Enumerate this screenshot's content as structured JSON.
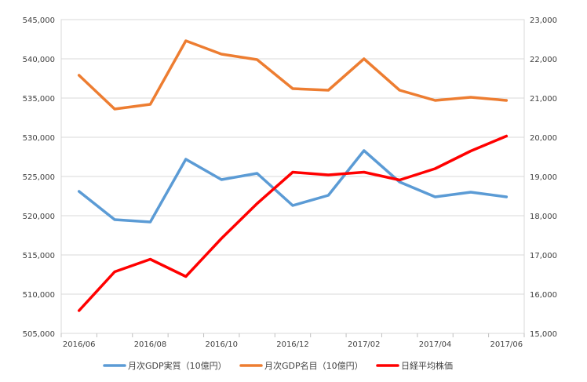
{
  "chart_data": {
    "type": "line",
    "title": "",
    "x": [
      "2016/06",
      "2016/07",
      "2016/08",
      "2016/09",
      "2016/10",
      "2016/11",
      "2016/12",
      "2017/01",
      "2017/02",
      "2017/03",
      "2017/04",
      "2017/05",
      "2017/06"
    ],
    "x_tick_labels": [
      "2016/06",
      "2016/08",
      "2016/10",
      "2016/12",
      "2017/02",
      "2017/04",
      "2017/06"
    ],
    "y_left": {
      "min": 505000,
      "max": 545000,
      "step": 5000,
      "ticks": [
        "505,000",
        "510,000",
        "515,000",
        "520,000",
        "525,000",
        "530,000",
        "535,000",
        "540,000",
        "545,000"
      ]
    },
    "y_right": {
      "min": 15000,
      "max": 23000,
      "step": 1000,
      "ticks": [
        "15,000",
        "16,000",
        "17,000",
        "18,000",
        "19,000",
        "20,000",
        "21,000",
        "22,000",
        "23,000"
      ]
    },
    "grid": "horizontal",
    "legend_position": "bottom",
    "series": [
      {
        "name": "月次GDP実質（10億円）",
        "axis": "left",
        "color": "#5b9bd5",
        "values": [
          523100,
          519500,
          519200,
          527200,
          524600,
          525400,
          521300,
          522600,
          528300,
          524300,
          522400,
          523000,
          522400
        ]
      },
      {
        "name": "月次GDP名目（10億円）",
        "axis": "left",
        "color": "#ed7d31",
        "values": [
          537900,
          533600,
          534200,
          542300,
          540600,
          539900,
          536200,
          536000,
          540000,
          536000,
          534700,
          535100,
          534700
        ]
      },
      {
        "name": "日経平均株価",
        "axis": "right",
        "color": "#ff0000",
        "values": [
          15580,
          16570,
          16890,
          16450,
          17420,
          18310,
          19110,
          19040,
          19110,
          18910,
          19200,
          19650,
          20030
        ]
      }
    ]
  }
}
